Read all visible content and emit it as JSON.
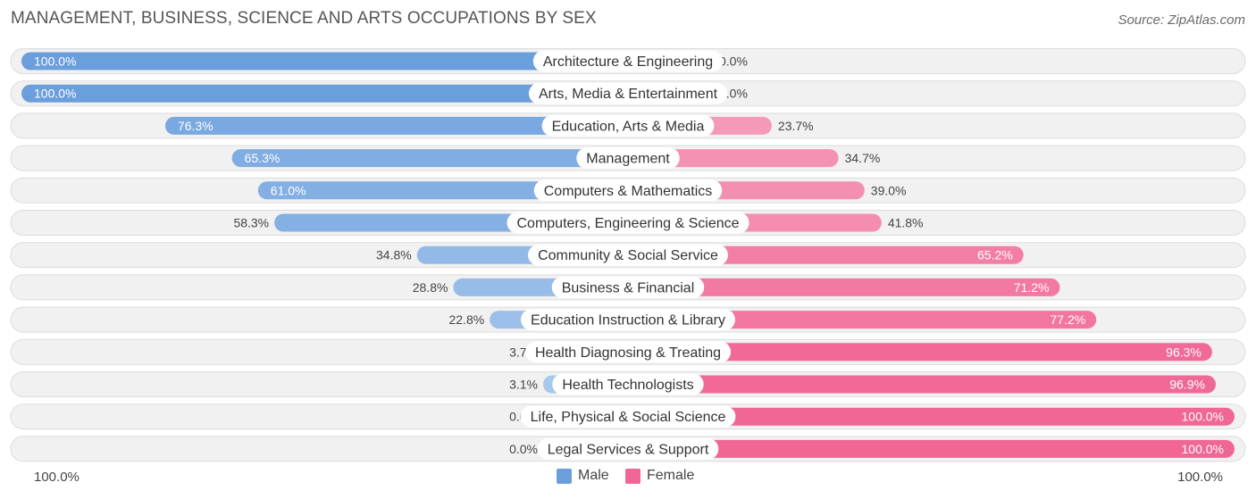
{
  "title": "MANAGEMENT, BUSINESS, SCIENCE AND ARTS OCCUPATIONS BY SEX",
  "source": "Source: ZipAtlas.com",
  "axis": {
    "left_label": "100.0%",
    "right_label": "100.0%"
  },
  "legend": {
    "male_label": "Male",
    "female_label": "Female"
  },
  "colors": {
    "male": "#6a9fdc",
    "male_light": "#a9c8ed",
    "female": "#f06795",
    "female_light": "#f7a9c3",
    "row_bg": "#f1f1f1"
  },
  "chart_data": {
    "type": "bar",
    "orientation": "diverging-horizontal",
    "categories": [
      "Architecture & Engineering",
      "Arts, Media & Entertainment",
      "Education, Arts & Media",
      "Management",
      "Computers & Mathematics",
      "Computers, Engineering & Science",
      "Community & Social Service",
      "Business & Financial",
      "Education Instruction & Library",
      "Health Diagnosing & Treating",
      "Health Technologists",
      "Life, Physical & Social Science",
      "Legal Services & Support"
    ],
    "series": [
      {
        "name": "Male",
        "values": [
          100.0,
          100.0,
          76.3,
          65.3,
          61.0,
          58.3,
          34.8,
          28.8,
          22.8,
          3.7,
          3.1,
          0.0,
          0.0
        ],
        "labels": [
          "100.0%",
          "100.0%",
          "76.3%",
          "65.3%",
          "61.0%",
          "58.3%",
          "34.8%",
          "28.8%",
          "22.8%",
          "3.7%",
          "3.1%",
          "0.0%",
          "0.0%"
        ]
      },
      {
        "name": "Female",
        "values": [
          0.0,
          0.0,
          23.7,
          34.7,
          39.0,
          41.8,
          65.2,
          71.2,
          77.2,
          96.3,
          96.9,
          100.0,
          100.0
        ],
        "labels": [
          "0.0%",
          "0.0%",
          "23.7%",
          "34.7%",
          "39.0%",
          "41.8%",
          "65.2%",
          "71.2%",
          "77.2%",
          "96.3%",
          "96.9%",
          "100.0%",
          "100.0%"
        ]
      }
    ],
    "xlim": [
      0,
      100
    ],
    "legend_position": "bottom-center"
  }
}
